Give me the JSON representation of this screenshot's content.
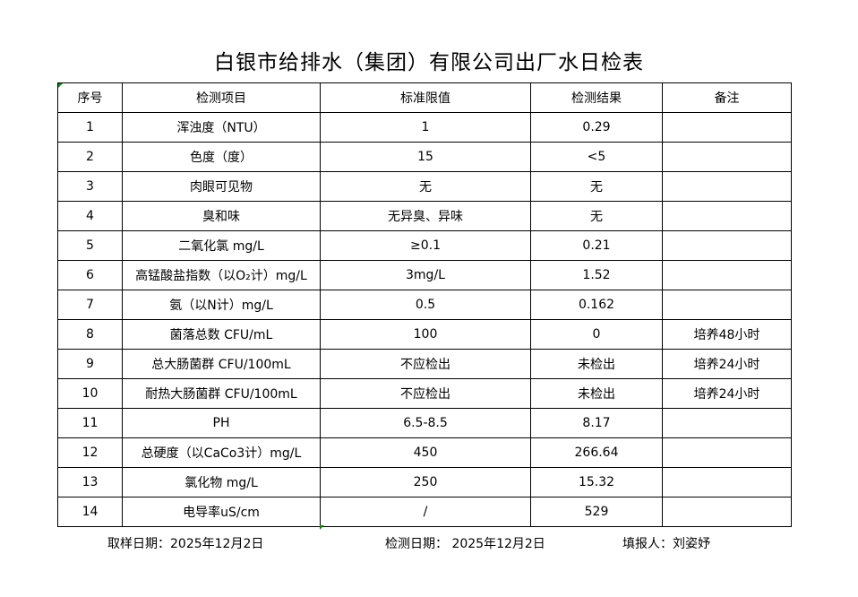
{
  "title": "白银市给排水（集团）有限公司出厂水日检表",
  "headers": [
    "序号",
    "检测项目",
    "标准限值",
    "检测结果",
    "备注"
  ],
  "rows": [
    [
      "1",
      "浑浊度（NTU）",
      "1",
      "0.29",
      ""
    ],
    [
      "2",
      "色度（度）",
      "15",
      "<5",
      ""
    ],
    [
      "3",
      "肉眼可见物",
      "无",
      "无",
      ""
    ],
    [
      "4",
      "臭和味",
      "无异臭、异味",
      "无",
      ""
    ],
    [
      "5",
      "二氧化氯 mg/L",
      "≥0.1",
      "0.21",
      ""
    ],
    [
      "6",
      "高锰酸盐指数（以O₂计）mg/L",
      "3mg/L",
      "1.52",
      ""
    ],
    [
      "7",
      "氨（以N计）mg/L",
      "0.5",
      "0.162",
      ""
    ],
    [
      "8",
      "菌落总数 CFU/mL",
      "100",
      "0",
      "培养48小时"
    ],
    [
      "9",
      "总大肠菌群 CFU/100mL",
      "不应检出",
      "未检出",
      "培养24小时"
    ],
    [
      "10",
      "耐热大肠菌群 CFU/100mL",
      "不应检出",
      "未检出",
      "培养24小时"
    ],
    [
      "11",
      "PH",
      "6.5-8.5",
      "8.17",
      ""
    ],
    [
      "12",
      "总硬度（以CaCo3计）mg/L",
      "450",
      "266.64",
      ""
    ],
    [
      "13",
      "氯化物 mg/L",
      "250",
      "15.32",
      ""
    ],
    [
      "14",
      "电导率uS/cm",
      "/",
      "529",
      ""
    ]
  ],
  "footer": {
    "sampling_date": "取样日期：2025年12月2日",
    "test_date": "检测日期：  2025年12月2日",
    "reporter": "填报人：刘姿妤"
  }
}
